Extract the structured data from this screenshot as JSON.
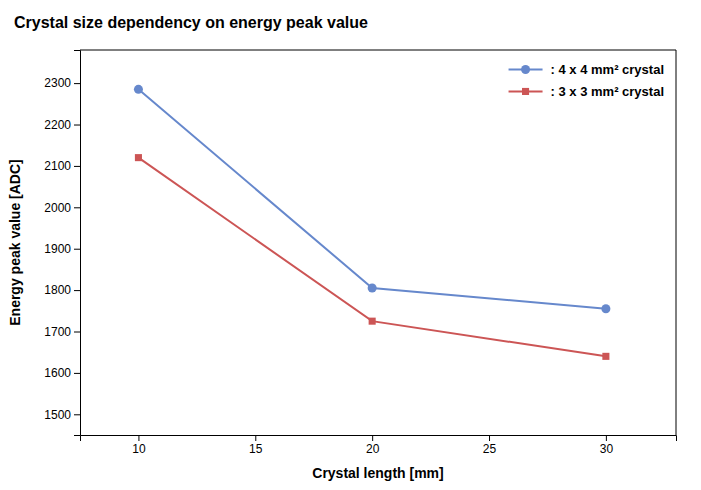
{
  "chart_data": {
    "type": "line",
    "title": "Crystal size dependency on energy peak value",
    "xlabel": "Crystal length [mm]",
    "ylabel": "Energy peak value [ADC]",
    "x": [
      10,
      20,
      30
    ],
    "series": [
      {
        "name": ": 4 x 4 mm² crystal",
        "color": "#6688cc",
        "marker": "circle",
        "values": [
          2285,
          1805,
          1755
        ]
      },
      {
        "name": ": 3 x 3 mm² crystal",
        "color": "#cc5555",
        "marker": "square",
        "values": [
          2120,
          1725,
          1640
        ]
      }
    ],
    "xlim": [
      7.5,
      33
    ],
    "ylim": [
      1450,
      2380
    ],
    "xticks": [
      10,
      15,
      20,
      25,
      30
    ],
    "yticks": [
      1500,
      1600,
      1700,
      1800,
      1900,
      2000,
      2100,
      2200,
      2300
    ],
    "legend": "upper-right",
    "grid": false
  }
}
